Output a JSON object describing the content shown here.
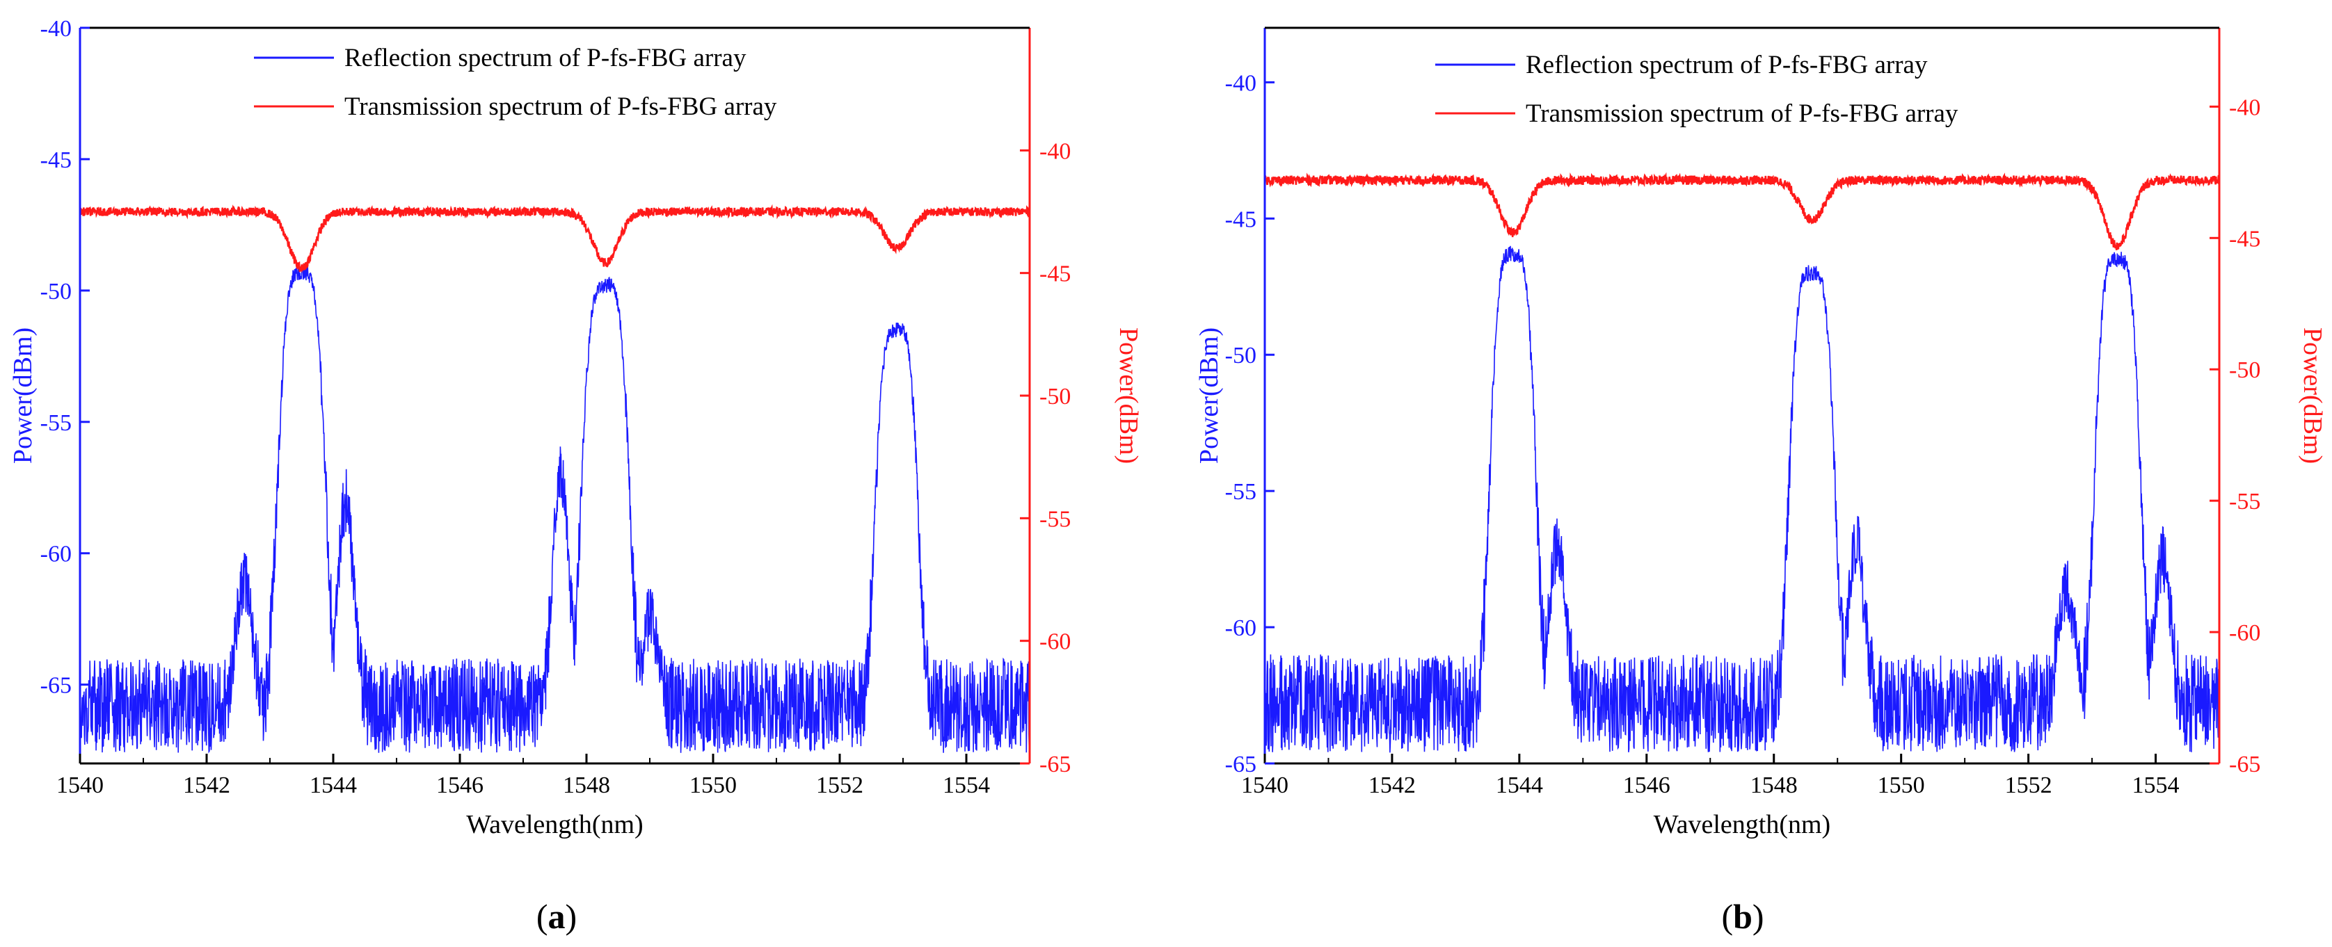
{
  "chart_data": [
    {
      "type": "line",
      "panel_label": "a",
      "xlabel": "Wavelength(nm)",
      "ylabel_left": "Power(dBm)",
      "ylabel_right": "Power(dBm)",
      "xlim": [
        1540,
        1555
      ],
      "xticks": [
        1540,
        1542,
        1544,
        1546,
        1548,
        1550,
        1552,
        1554
      ],
      "ylim_left": [
        -68,
        -40
      ],
      "yticks_left": [
        -40,
        -45,
        -50,
        -55,
        -60,
        -65
      ],
      "ylim_right": [
        -65,
        -35
      ],
      "yticks_right": [
        -40,
        -45,
        -50,
        -55,
        -60,
        -65
      ],
      "grid": false,
      "legend_position": "top-center",
      "series": [
        {
          "name": "Reflection spectrum of P-fs-FBG array",
          "axis": "left",
          "color": "#1a1aff",
          "noise_floor": -65.8,
          "peaks": [
            {
              "center": 1543.5,
              "peak": -49.3,
              "width": 0.42
            },
            {
              "center": 1548.3,
              "peak": -49.8,
              "width": 0.42
            },
            {
              "center": 1552.9,
              "peak": -51.5,
              "width": 0.38
            }
          ],
          "sidelobes": [
            {
              "center": 1542.6,
              "level": -61.0
            },
            {
              "center": 1544.2,
              "level": -58.0
            },
            {
              "center": 1547.6,
              "level": -57.0
            },
            {
              "center": 1549.0,
              "level": -62.5
            }
          ]
        },
        {
          "name": "Transmission spectrum of P-fs-FBG array",
          "axis": "right",
          "color": "#ff1a1a",
          "baseline": -42.5,
          "dips": [
            {
              "center": 1543.5,
              "depth": -44.8
            },
            {
              "center": 1548.3,
              "depth": -44.6
            },
            {
              "center": 1552.9,
              "depth": -44.0
            }
          ]
        }
      ]
    },
    {
      "type": "line",
      "panel_label": "b",
      "xlabel": "Wavelength(nm)",
      "ylabel_left": "Power(dBm)",
      "ylabel_right": "Power(dBm)",
      "xlim": [
        1540,
        1555
      ],
      "xticks": [
        1540,
        1542,
        1544,
        1546,
        1548,
        1550,
        1552,
        1554
      ],
      "ylim_left": [
        -65,
        -38
      ],
      "yticks_left": [
        -40,
        -45,
        -50,
        -55,
        -60,
        -65
      ],
      "ylim_right": [
        -65,
        -37
      ],
      "yticks_right": [
        -40,
        -45,
        -50,
        -55,
        -60,
        -65
      ],
      "grid": false,
      "legend_position": "top-center",
      "series": [
        {
          "name": "Reflection spectrum of P-fs-FBG array",
          "axis": "left",
          "color": "#1a1aff",
          "noise_floor": -62.8,
          "peaks": [
            {
              "center": 1543.9,
              "peak": -46.3,
              "width": 0.4
            },
            {
              "center": 1548.6,
              "peak": -47.0,
              "width": 0.4
            },
            {
              "center": 1553.4,
              "peak": -46.5,
              "width": 0.4
            }
          ],
          "sidelobes": [
            {
              "center": 1544.6,
              "level": -57.0
            },
            {
              "center": 1549.3,
              "level": -57.0
            },
            {
              "center": 1552.6,
              "level": -58.5
            },
            {
              "center": 1554.1,
              "level": -57.5
            }
          ]
        },
        {
          "name": "Transmission spectrum of P-fs-FBG array",
          "axis": "right",
          "color": "#ff1a1a",
          "baseline": -42.8,
          "dips": [
            {
              "center": 1543.9,
              "depth": -44.8
            },
            {
              "center": 1548.6,
              "depth": -44.3
            },
            {
              "center": 1553.4,
              "depth": -45.3
            }
          ]
        }
      ]
    }
  ]
}
